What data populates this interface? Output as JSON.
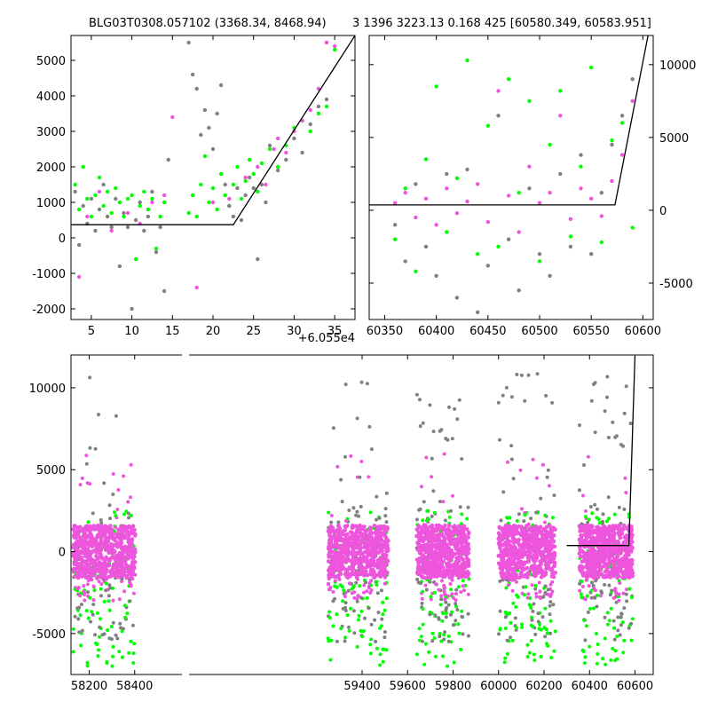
{
  "chart_data": [
    {
      "type": "scatter",
      "panel": "top-left",
      "title": "BLG03T0308.057102 (3368.34, 8468.94)",
      "xlabel": "",
      "ylabel": "",
      "xlim": [
        2.5,
        37.5
      ],
      "ylim": [
        -2300,
        5700
      ],
      "x_offset_label": "+6.055e4",
      "xticks": [
        5,
        10,
        15,
        20,
        25,
        30,
        35
      ],
      "yticks": [
        -2000,
        -1000,
        0,
        1000,
        2000,
        3000,
        4000,
        5000
      ],
      "ytick_side": "left",
      "grid": false,
      "series": [
        {
          "color": "#00ff00",
          "x": [
            3,
            3.5,
            4,
            4.5,
            5,
            5.5,
            6,
            6.5,
            7,
            7.5,
            8,
            8.5,
            9,
            9.5,
            10,
            10.5,
            11,
            11.5,
            12,
            12.5,
            13,
            13.5,
            14,
            17,
            17.5,
            18,
            18.5,
            19,
            19.5,
            20,
            20.5,
            21,
            21.5,
            22,
            22.5,
            23,
            23.5,
            24,
            24.5,
            25,
            25.5,
            26,
            27,
            28,
            29,
            30,
            31,
            32,
            33,
            34,
            35
          ],
          "y": [
            1500,
            800,
            2000,
            1100,
            600,
            1200,
            1700,
            900,
            1300,
            700,
            1400,
            1000,
            600,
            1100,
            1200,
            -600,
            900,
            1300,
            800,
            1100,
            -300,
            600,
            1000,
            700,
            1200,
            600,
            1500,
            2300,
            1000,
            1400,
            800,
            1800,
            1200,
            900,
            1500,
            2000,
            1100,
            1600,
            2200,
            1800,
            1300,
            2100,
            2500,
            2000,
            2600,
            3100,
            3300,
            3000,
            3500,
            3700,
            5300
          ]
        },
        {
          "color": "#808080",
          "x": [
            3,
            3.5,
            4,
            4.5,
            5,
            5.5,
            6,
            6.5,
            7,
            7.5,
            8,
            8.5,
            9,
            9.5,
            10,
            10.5,
            11,
            11.5,
            12,
            12.5,
            13,
            13.5,
            14,
            14.5,
            17,
            17.5,
            18,
            18.5,
            19,
            19.5,
            20,
            20.5,
            21,
            21.5,
            22,
            22.5,
            23,
            23.5,
            24,
            24.5,
            25,
            25.5,
            26,
            26.5,
            27,
            28,
            29,
            30,
            31,
            32,
            33,
            34
          ],
          "y": [
            1300,
            -200,
            900,
            400,
            1100,
            200,
            800,
            1500,
            600,
            300,
            1100,
            -800,
            700,
            300,
            -2000,
            500,
            1000,
            200,
            600,
            1300,
            -400,
            300,
            -1500,
            2200,
            5500,
            4600,
            4200,
            2900,
            3600,
            3100,
            2500,
            3500,
            4300,
            1500,
            900,
            600,
            1400,
            500,
            1200,
            1700,
            1400,
            -600,
            1500,
            1000,
            2600,
            1900,
            2200,
            2800,
            2400,
            3200,
            3700,
            3900
          ]
        },
        {
          "color": "#ee55dd",
          "x": [
            3.5,
            4.5,
            6,
            7.5,
            9.5,
            11,
            12.5,
            14,
            15,
            18,
            20,
            22,
            24,
            25.5,
            26.5,
            27.5,
            28,
            29,
            30,
            31,
            32,
            33,
            34,
            35
          ],
          "y": [
            -1100,
            600,
            1300,
            200,
            700,
            400,
            1000,
            1200,
            3400,
            -1400,
            1000,
            1100,
            1700,
            2000,
            1500,
            2500,
            2800,
            2400,
            3000,
            3300,
            3600,
            4200,
            5500,
            5400
          ]
        }
      ],
      "model_line": {
        "x": [
          2.5,
          22.5,
          37.5
        ],
        "y": [
          370,
          370,
          5700
        ]
      }
    },
    {
      "type": "scatter",
      "panel": "top-right",
      "title": "3 1396 3223.13 0.168 425 [60580.349, 60583.951]",
      "xlabel": "",
      "ylabel": "",
      "xlim": [
        60335,
        60610
      ],
      "ylim": [
        -7500,
        12000
      ],
      "xticks": [
        60350,
        60400,
        60450,
        60500,
        60550,
        60600
      ],
      "yticks": [
        -5000,
        0,
        5000,
        10000
      ],
      "ytick_side": "right",
      "grid": false,
      "series": [
        {
          "color": "#00ff00",
          "x": [
            60360,
            60370,
            60380,
            60390,
            60400,
            60410,
            60420,
            60430,
            60440,
            60450,
            60460,
            60470,
            60480,
            60490,
            60500,
            60510,
            60520,
            60530,
            60540,
            60550,
            60560,
            60570,
            60580,
            60590
          ],
          "y": [
            -2000,
            1500,
            -4200,
            3500,
            8500,
            -1500,
            2200,
            10300,
            -3000,
            5800,
            -2500,
            9000,
            1200,
            7500,
            -3500,
            4500,
            8200,
            -1800,
            3000,
            9800,
            -2200,
            4800,
            6000,
            -1200
          ]
        },
        {
          "color": "#808080",
          "x": [
            60360,
            60370,
            60380,
            60390,
            60400,
            60410,
            60420,
            60430,
            60440,
            60450,
            60460,
            60470,
            60480,
            60490,
            60500,
            60510,
            60520,
            60530,
            60540,
            60550,
            60560,
            60570,
            60580,
            60590
          ],
          "y": [
            -1000,
            -3500,
            1800,
            -2500,
            -4500,
            2500,
            -6000,
            2800,
            -7000,
            -3800,
            6500,
            -2000,
            -5500,
            1500,
            -3000,
            -4500,
            2500,
            -2500,
            3800,
            -3000,
            1200,
            4500,
            6500,
            9000
          ]
        },
        {
          "color": "#ee55dd",
          "x": [
            60360,
            60370,
            60380,
            60390,
            60400,
            60410,
            60420,
            60430,
            60440,
            60450,
            60460,
            60470,
            60480,
            60490,
            60500,
            60510,
            60520,
            60530,
            60540,
            60550,
            60560,
            60570,
            60580,
            60590
          ],
          "y": [
            500,
            1200,
            -500,
            800,
            -1000,
            1500,
            -200,
            600,
            1800,
            -800,
            8200,
            1000,
            -1500,
            3000,
            500,
            1200,
            6500,
            -600,
            1500,
            800,
            -400,
            2000,
            3800,
            7500
          ]
        }
      ],
      "model_line": {
        "x": [
          60335,
          60573,
          60605
        ],
        "y": [
          370,
          370,
          12000
        ]
      }
    },
    {
      "type": "scatter",
      "panel": "bottom",
      "title": "",
      "xlabel": "",
      "ylabel": "",
      "xlim": [
        58120,
        60680
      ],
      "ylim": [
        -7500,
        12000
      ],
      "xticks": [
        58200,
        58400,
        59400,
        59600,
        59800,
        60000,
        60200,
        60400,
        60600
      ],
      "yticks": [
        -5000,
        0,
        5000,
        10000
      ],
      "ytick_side": "left",
      "grid": false,
      "seasons": [
        {
          "start": 58130,
          "end": 58405
        },
        {
          "start": 59250,
          "end": 59515
        },
        {
          "start": 59640,
          "end": 59870
        },
        {
          "start": 60000,
          "end": 60250
        },
        {
          "start": 60355,
          "end": 60590
        }
      ],
      "model_line": {
        "x": [
          60300,
          60573,
          60600
        ],
        "y": [
          370,
          370,
          12000
        ]
      }
    }
  ]
}
